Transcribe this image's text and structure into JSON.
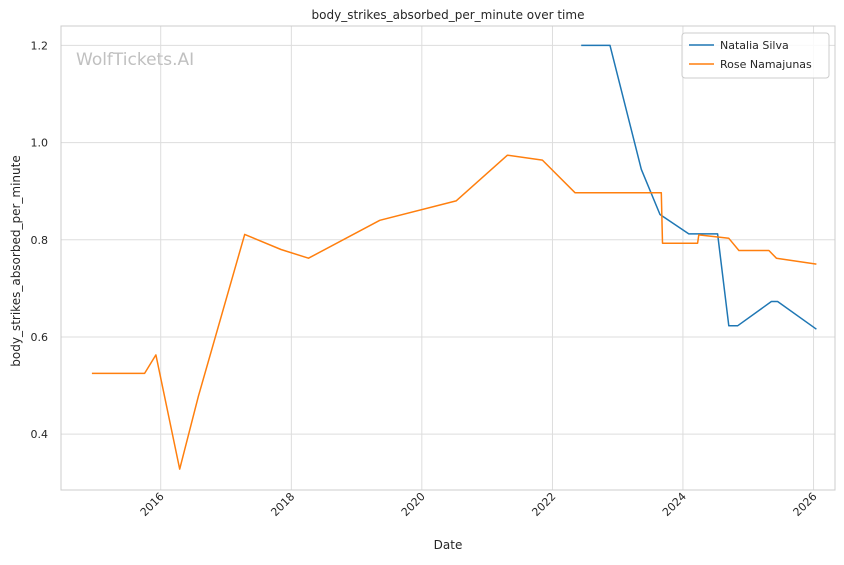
{
  "chart_data": {
    "type": "line",
    "title": "body_strikes_absorbed_per_minute over time",
    "xlabel": "Date",
    "ylabel": "body_strikes_absorbed_per_minute",
    "watermark": "WolfTickets.AI",
    "x_is_date": true,
    "xlim": [
      "2014-06-22",
      "2026-05-01"
    ],
    "ylim": [
      0.285,
      1.24
    ],
    "x_ticks": [
      "2016-01-01",
      "2018-01-01",
      "2020-01-01",
      "2022-01-01",
      "2024-01-01",
      "2026-01-01"
    ],
    "x_tick_labels": [
      "2016",
      "2018",
      "2020",
      "2022",
      "2024",
      "2026"
    ],
    "y_ticks": [
      0.4,
      0.6,
      0.8,
      1.0,
      1.2
    ],
    "y_tick_labels": [
      "0.4",
      "0.6",
      "0.8",
      "1.0",
      "1.2"
    ],
    "grid": true,
    "legend_position": "top-right",
    "series": [
      {
        "name": "Natalia Silva",
        "color": "#1f77b4",
        "points": [
          [
            "2022-06-11",
            1.2
          ],
          [
            "2022-11-19",
            1.2
          ],
          [
            "2023-05-13",
            0.945
          ],
          [
            "2023-08-26",
            0.852
          ],
          [
            "2024-02-03",
            0.812
          ],
          [
            "2024-07-13",
            0.812
          ],
          [
            "2024-09-14",
            0.623
          ],
          [
            "2024-11-02",
            0.623
          ],
          [
            "2025-05-10",
            0.673
          ],
          [
            "2025-06-14",
            0.673
          ],
          [
            "2026-01-17",
            0.616
          ]
        ]
      },
      {
        "name": "Rose Namajunas",
        "color": "#ff7f0e",
        "points": [
          [
            "2014-12-12",
            0.525
          ],
          [
            "2015-10-03",
            0.525
          ],
          [
            "2015-12-05",
            0.563
          ],
          [
            "2016-04-16",
            0.328
          ],
          [
            "2016-07-30",
            0.478
          ],
          [
            "2017-04-15",
            0.811
          ],
          [
            "2017-11-04",
            0.78
          ],
          [
            "2018-04-07",
            0.762
          ],
          [
            "2019-05-11",
            0.84
          ],
          [
            "2020-07-11",
            0.88
          ],
          [
            "2021-04-24",
            0.974
          ],
          [
            "2021-11-06",
            0.964
          ],
          [
            "2022-05-07",
            0.897
          ],
          [
            "2023-09-02",
            0.897
          ],
          [
            "2023-09-09",
            0.793
          ],
          [
            "2024-03-23",
            0.793
          ],
          [
            "2024-03-30",
            0.81
          ],
          [
            "2024-09-14",
            0.803
          ],
          [
            "2024-11-09",
            0.778
          ],
          [
            "2025-04-26",
            0.778
          ],
          [
            "2025-06-07",
            0.762
          ],
          [
            "2026-01-17",
            0.75
          ]
        ]
      }
    ]
  }
}
